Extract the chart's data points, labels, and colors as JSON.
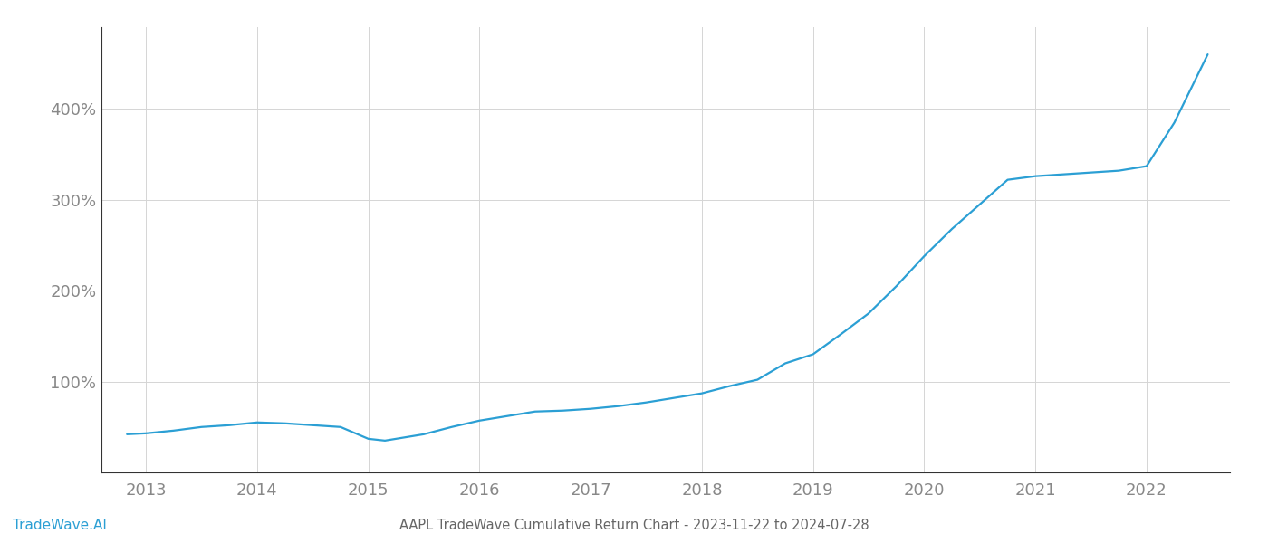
{
  "title": "AAPL TradeWave Cumulative Return Chart - 2023-11-22 to 2024-07-28",
  "watermark": "TradeWave.AI",
  "line_color": "#2b9fd4",
  "line_width": 1.6,
  "x_years": [
    2013,
    2014,
    2015,
    2016,
    2017,
    2018,
    2019,
    2020,
    2021,
    2022
  ],
  "data_x": [
    2012.83,
    2013.0,
    2013.25,
    2013.5,
    2013.75,
    2014.0,
    2014.25,
    2014.5,
    2014.75,
    2015.0,
    2015.15,
    2015.5,
    2015.75,
    2016.0,
    2016.25,
    2016.5,
    2016.75,
    2017.0,
    2017.25,
    2017.5,
    2017.75,
    2018.0,
    2018.25,
    2018.5,
    2018.75,
    2019.0,
    2019.25,
    2019.5,
    2019.75,
    2020.0,
    2020.25,
    2020.5,
    2020.75,
    2021.0,
    2021.25,
    2021.5,
    2021.75,
    2022.0,
    2022.25,
    2022.55
  ],
  "data_y": [
    42,
    43,
    46,
    50,
    52,
    55,
    54,
    52,
    50,
    37,
    35,
    42,
    50,
    57,
    62,
    67,
    68,
    70,
    73,
    77,
    82,
    87,
    95,
    102,
    120,
    130,
    152,
    175,
    205,
    238,
    268,
    295,
    322,
    326,
    328,
    330,
    332,
    337,
    385,
    460
  ],
  "ylim_min": 0,
  "ylim_max": 490,
  "yticks": [
    100,
    200,
    300,
    400
  ],
  "xlim_min": 2012.6,
  "xlim_max": 2022.75,
  "background_color": "#ffffff",
  "grid_color": "#d5d5d5",
  "left_spine_color": "#333333",
  "bottom_spine_color": "#333333",
  "tick_color": "#888888",
  "title_color": "#666666",
  "watermark_color": "#2b9fd4",
  "title_fontsize": 10.5,
  "watermark_fontsize": 11,
  "tick_fontsize": 13
}
